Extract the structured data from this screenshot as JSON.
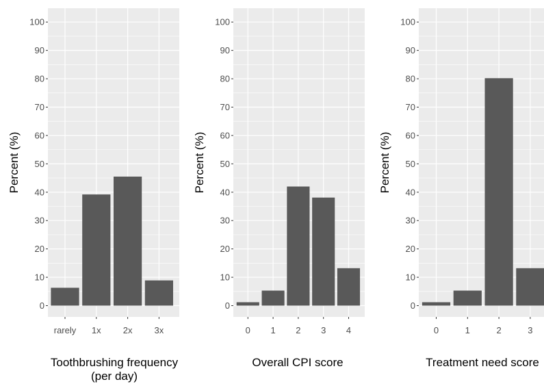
{
  "colors": {
    "panel_bg": "#ebebeb",
    "grid": "#ffffff",
    "bar": "#595959",
    "tick": "#4d4d4d",
    "text": "#000000"
  },
  "chart_data": [
    {
      "type": "bar",
      "categories": [
        "rarely",
        "1x",
        "2x",
        "3x"
      ],
      "values": [
        6.3,
        39.2,
        45.5,
        8.9
      ],
      "xlabel": "Toothbrushing frequency\n(per day)",
      "ylabel": "Percent  (%)",
      "ylim": [
        0,
        100
      ],
      "yticks": [
        0,
        10,
        20,
        30,
        40,
        50,
        60,
        70,
        80,
        90,
        100
      ],
      "grid": true
    },
    {
      "type": "bar",
      "categories": [
        "0",
        "1",
        "2",
        "3",
        "4"
      ],
      "values": [
        1.2,
        5.3,
        42.0,
        38.1,
        13.2
      ],
      "xlabel": "Overall CPI score",
      "ylabel": "Percent  (%)",
      "ylim": [
        0,
        100
      ],
      "yticks": [
        0,
        10,
        20,
        30,
        40,
        50,
        60,
        70,
        80,
        90,
        100
      ],
      "grid": true
    },
    {
      "type": "bar",
      "categories": [
        "0",
        "1",
        "2",
        "3"
      ],
      "values": [
        1.2,
        5.3,
        80.2,
        13.2
      ],
      "xlabel": "Treatment need score",
      "ylabel": "Percent  (%)",
      "ylim": [
        0,
        100
      ],
      "yticks": [
        0,
        10,
        20,
        30,
        40,
        50,
        60,
        70,
        80,
        90,
        100
      ],
      "grid": true
    }
  ]
}
